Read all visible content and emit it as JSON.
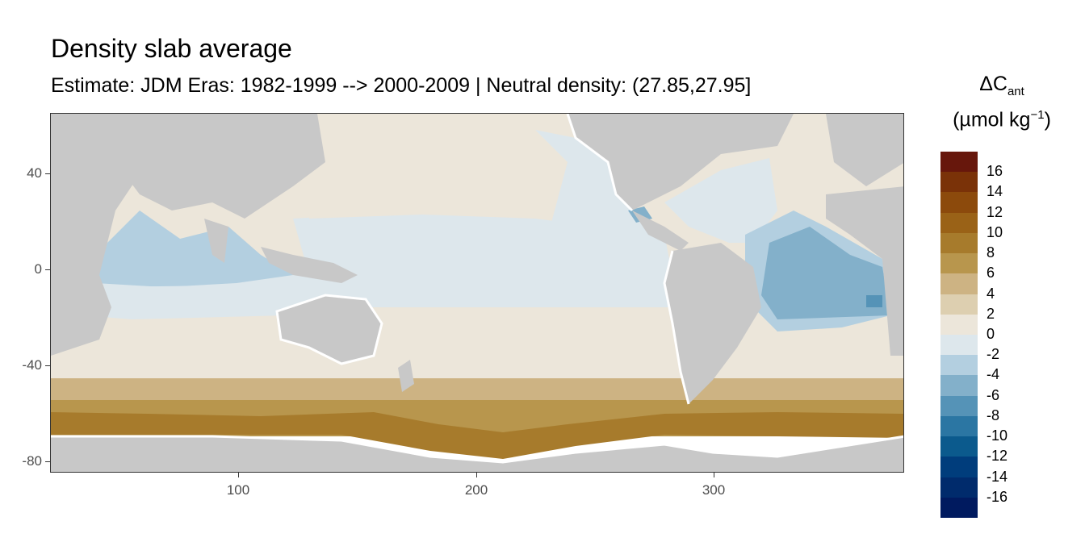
{
  "title": "Density slab average",
  "subtitle": "Estimate: JDM Eras: 1982-1999 --> 2000-2009 | Neutral density: (27.85,27.95]",
  "legend": {
    "title_main": "ΔC",
    "title_sub": "ant",
    "units_prefix": "(µmol kg",
    "units_exp": "−1",
    "units_suffix": ")",
    "labels": [
      "16",
      "14",
      "12",
      "10",
      "8",
      "6",
      "4",
      "2",
      "0",
      "-2",
      "-4",
      "-6",
      "-8",
      "-10",
      "-12",
      "-14",
      "-16"
    ],
    "colors": [
      "#67170c",
      "#7a3208",
      "#8c4a0c",
      "#9a6217",
      "#a77b2c",
      "#b8964d",
      "#cdb383",
      "#ddcfb0",
      "#ece6da",
      "#dde7ec",
      "#b3cfe0",
      "#83b0ca",
      "#5593b7",
      "#2b76a3",
      "#0b5a8d",
      "#003d7c",
      "#002b6c",
      "#001a5f"
    ]
  },
  "axes": {
    "x_ticks": [
      "100",
      "200",
      "300"
    ],
    "y_ticks": [
      "40",
      "0",
      "-40",
      "-80"
    ]
  },
  "colors": {
    "land": "#c8c8c8",
    "panel_border": "#333333",
    "no_data": "#ffffff"
  }
}
